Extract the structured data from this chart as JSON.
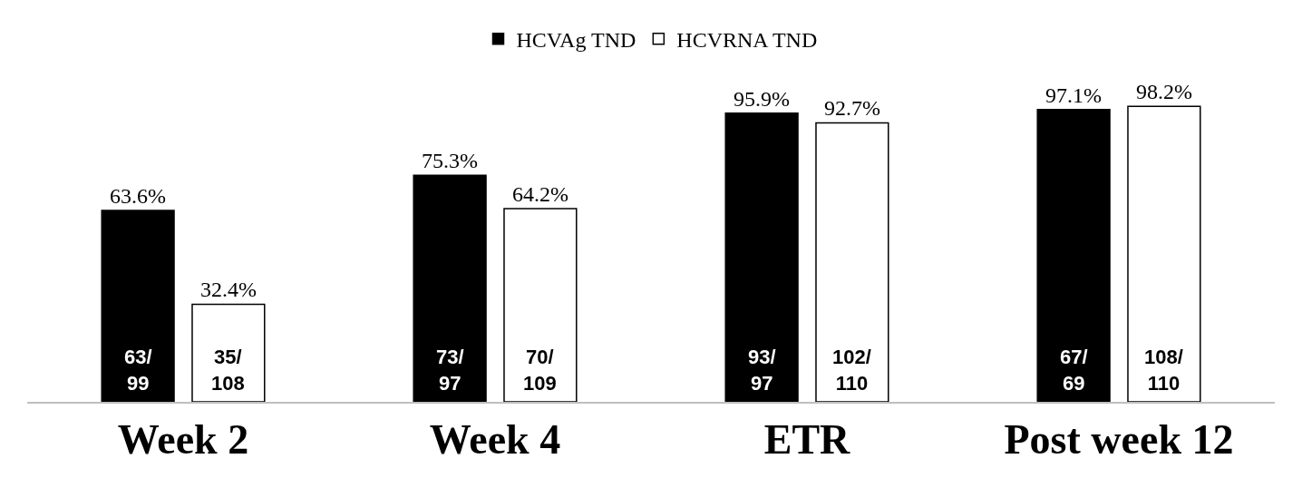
{
  "chart_data": {
    "type": "bar",
    "categories": [
      "Week 2",
      "Week 4",
      "ETR",
      "Post week 12"
    ],
    "series": [
      {
        "name": "HCVAg TND",
        "color": "#000000",
        "values": [
          63.6,
          75.3,
          95.9,
          97.1
        ],
        "value_labels": [
          "63.6%",
          "75.3%",
          "95.9%",
          "97.1%"
        ]
      },
      {
        "name": "HCVRNA TND",
        "color": "#ffffff",
        "values": [
          32.4,
          64.2,
          92.7,
          98.2
        ],
        "value_labels": [
          "32.4%",
          "64.2%",
          "92.7%",
          "98.2%"
        ]
      }
    ],
    "tick_labels": "x",
    "grid": false,
    "legend": "top",
    "annotations": [
      "63/99",
      "35/108",
      "73/97",
      "70/109",
      "93/97",
      "102/110",
      "67/69",
      "108/110"
    ]
  }
}
